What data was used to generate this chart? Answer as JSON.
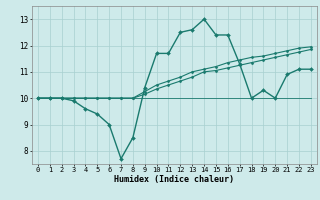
{
  "bg_color": "#ceeaea",
  "grid_color": "#a8d0d0",
  "line_color": "#1a7a6e",
  "xlabel": "Humidex (Indice chaleur)",
  "xlim": [
    -0.5,
    23.5
  ],
  "ylim": [
    7.5,
    13.5
  ],
  "yticks": [
    8,
    9,
    10,
    11,
    12,
    13
  ],
  "xticks": [
    0,
    1,
    2,
    3,
    4,
    5,
    6,
    7,
    8,
    9,
    10,
    11,
    12,
    13,
    14,
    15,
    16,
    17,
    18,
    19,
    20,
    21,
    22,
    23
  ],
  "lines": [
    {
      "x": [
        0,
        1,
        2,
        3,
        4,
        5,
        6,
        7,
        8,
        9,
        10,
        11,
        12,
        13,
        14,
        15,
        16,
        17,
        18,
        19,
        20,
        21,
        22,
        23
      ],
      "y": [
        10.0,
        10.0,
        10.0,
        9.9,
        9.6,
        9.4,
        9.0,
        7.7,
        8.5,
        10.4,
        11.7,
        11.7,
        12.5,
        12.6,
        13.0,
        12.4,
        12.4,
        11.3,
        10.0,
        10.3,
        10.0,
        10.9,
        11.1,
        11.1
      ],
      "lw": 1.0,
      "marker": true,
      "ms": 2.0
    },
    {
      "x": [
        0,
        1,
        2,
        3,
        4,
        5,
        6,
        7,
        8,
        9,
        10,
        11,
        12,
        13,
        14,
        15,
        16,
        17,
        18,
        19,
        20,
        21,
        22,
        23
      ],
      "y": [
        10.0,
        10.0,
        10.0,
        10.0,
        10.0,
        10.0,
        10.0,
        10.0,
        10.0,
        10.25,
        10.5,
        10.65,
        10.8,
        11.0,
        11.1,
        11.2,
        11.35,
        11.45,
        11.55,
        11.6,
        11.7,
        11.8,
        11.9,
        11.95
      ],
      "lw": 0.8,
      "marker": true,
      "ms": 1.5
    },
    {
      "x": [
        0,
        1,
        2,
        3,
        4,
        5,
        6,
        7,
        8,
        9,
        10,
        11,
        12,
        13,
        14,
        15,
        16,
        17,
        18,
        19,
        20,
        21,
        22,
        23
      ],
      "y": [
        10.0,
        10.0,
        10.0,
        10.0,
        10.0,
        10.0,
        10.0,
        10.0,
        10.0,
        10.15,
        10.35,
        10.5,
        10.65,
        10.8,
        11.0,
        11.05,
        11.15,
        11.25,
        11.35,
        11.45,
        11.55,
        11.65,
        11.75,
        11.85
      ],
      "lw": 0.8,
      "marker": true,
      "ms": 1.5
    },
    {
      "x": [
        0,
        23
      ],
      "y": [
        10.0,
        10.0
      ],
      "lw": 0.6,
      "marker": false,
      "ms": 0
    }
  ]
}
